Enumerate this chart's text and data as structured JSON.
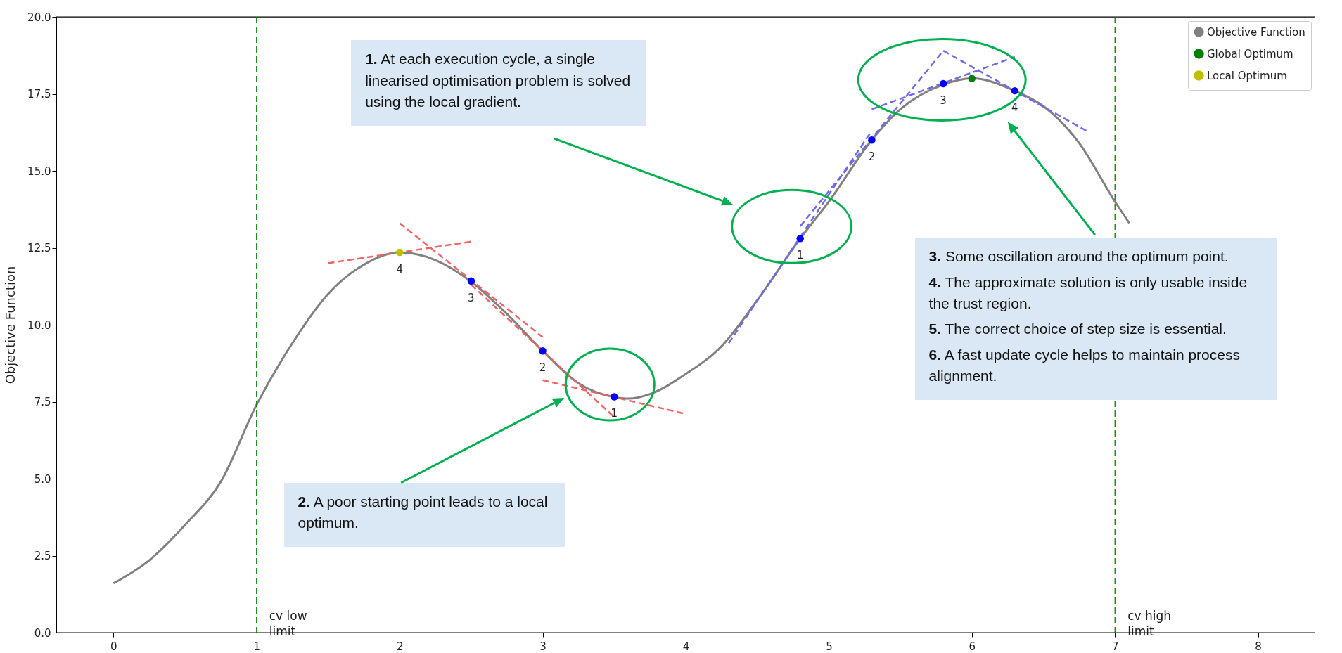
{
  "chart_data": {
    "type": "line",
    "ylabel": "Objective Function",
    "xlim": [
      -0.4,
      8.4
    ],
    "ylim": [
      0,
      20
    ],
    "xticks": [
      0,
      1,
      2,
      3,
      4,
      5,
      6,
      7,
      8
    ],
    "yticks": [
      {
        "value": 0,
        "label": "0.0"
      },
      {
        "value": 2.5,
        "label": "2.5"
      },
      {
        "value": 5,
        "label": "5.0"
      },
      {
        "value": 7.5,
        "label": "7.5"
      },
      {
        "value": 10,
        "label": "10.0"
      },
      {
        "value": 12.5,
        "label": "12.5"
      },
      {
        "value": 15,
        "label": "15.0"
      },
      {
        "value": 17.5,
        "label": "17.5"
      },
      {
        "value": 20,
        "label": "20.0"
      }
    ],
    "legend": "top right",
    "series": [
      {
        "name": "Objective Function",
        "color": "#808080",
        "x": [
          0,
          0.25,
          0.5,
          0.75,
          1,
          1.25,
          1.5,
          1.75,
          2,
          2.25,
          2.5,
          2.75,
          3,
          3.25,
          3.5,
          3.6,
          3.75,
          4,
          4.25,
          4.5,
          4.8,
          5,
          5.3,
          5.5,
          5.8,
          6,
          6.3,
          6.5,
          6.75,
          7,
          7.1
        ],
        "values": [
          1.6,
          2.35,
          3.5,
          4.9,
          7.4,
          9.4,
          11.0,
          11.95,
          12.35,
          12.1,
          11.4,
          10.35,
          9.15,
          8.1,
          7.65,
          7.6,
          7.75,
          8.4,
          9.3,
          10.8,
          12.8,
          14.0,
          16.0,
          17.0,
          17.8,
          18.0,
          17.6,
          17.1,
          15.9,
          14.0,
          13.3
        ]
      },
      {
        "line_style": "dashed",
        "color": "#f06464",
        "x": [
          1.5,
          2.5
        ],
        "values": [
          12.0,
          12.7
        ]
      },
      {
        "line_style": "dashed",
        "color": "#f06464",
        "x": [
          2.0,
          3.0
        ],
        "values": [
          13.3,
          9.6
        ]
      },
      {
        "line_style": "dashed",
        "color": "#f06464",
        "x": [
          2.5,
          3.5
        ],
        "values": [
          11.3,
          7.0
        ]
      },
      {
        "line_style": "dashed",
        "color": "#f06464",
        "x": [
          3.0,
          4.0
        ],
        "values": [
          8.2,
          7.1
        ]
      },
      {
        "line_style": "dashed",
        "color": "#6b6bea",
        "x": [
          4.3,
          5.3
        ],
        "values": [
          9.4,
          16.3
        ]
      },
      {
        "line_style": "dashed",
        "color": "#6b6bea",
        "x": [
          4.8,
          5.8
        ],
        "values": [
          13.2,
          18.9
        ]
      },
      {
        "line_style": "dashed",
        "color": "#6b6bea",
        "x": [
          5.3,
          6.3
        ],
        "values": [
          17.0,
          18.7
        ]
      },
      {
        "line_style": "dashed",
        "color": "#6b6bea",
        "x": [
          5.8,
          6.8
        ],
        "values": [
          18.9,
          16.3
        ]
      },
      {
        "type": "scatter",
        "color": "#0000ff",
        "x": [
          3.5,
          3.0,
          2.5
        ],
        "values": [
          7.66,
          9.15,
          11.42
        ]
      },
      {
        "type": "scatter",
        "color": "#0000ff",
        "x": [
          4.8,
          5.3,
          5.8,
          6.3
        ],
        "values": [
          12.8,
          16.0,
          17.83,
          17.6
        ]
      },
      {
        "name": "Global Optimum",
        "type": "scatter",
        "color": "#008000",
        "x": [
          6.0
        ],
        "values": [
          18.0
        ]
      },
      {
        "name": "Local Optimum",
        "type": "scatter",
        "color": "#bfbf00",
        "x": [
          2.0
        ],
        "values": [
          12.35
        ]
      }
    ],
    "ref_lines": [
      {
        "axis": "x",
        "value": 1,
        "label": "cv low limit",
        "color": "#008000",
        "line_style": "dashed"
      },
      {
        "axis": "x",
        "value": 7,
        "label": "cv high limit",
        "color": "#008000",
        "line_style": "dashed"
      }
    ],
    "annotations": [
      "1. At each execution cycle, a single linearised optimisation problem is solved using the local gradient.",
      "2. A poor starting point leads to a local optimum.",
      "3. Some oscillation around the optimum point.",
      "4. The approximate solution is only usable inside the trust region.",
      "5. The correct choice of step size is essential.",
      "6. A fast update cycle helps to maintain process alignment.",
      {
        "text": "1",
        "x": 3.5,
        "y": 7.66
      },
      {
        "text": "2",
        "x": 3.0,
        "y": 9.15
      },
      {
        "text": "3",
        "x": 2.5,
        "y": 11.42
      },
      {
        "text": "4",
        "x": 2.0,
        "y": 12.35
      },
      {
        "text": "1",
        "x": 4.8,
        "y": 12.8
      },
      {
        "text": "2",
        "x": 5.3,
        "y": 16.0
      },
      {
        "text": "3",
        "x": 5.8,
        "y": 17.83
      },
      {
        "text": "4",
        "x": 6.3,
        "y": 17.6
      }
    ]
  }
}
